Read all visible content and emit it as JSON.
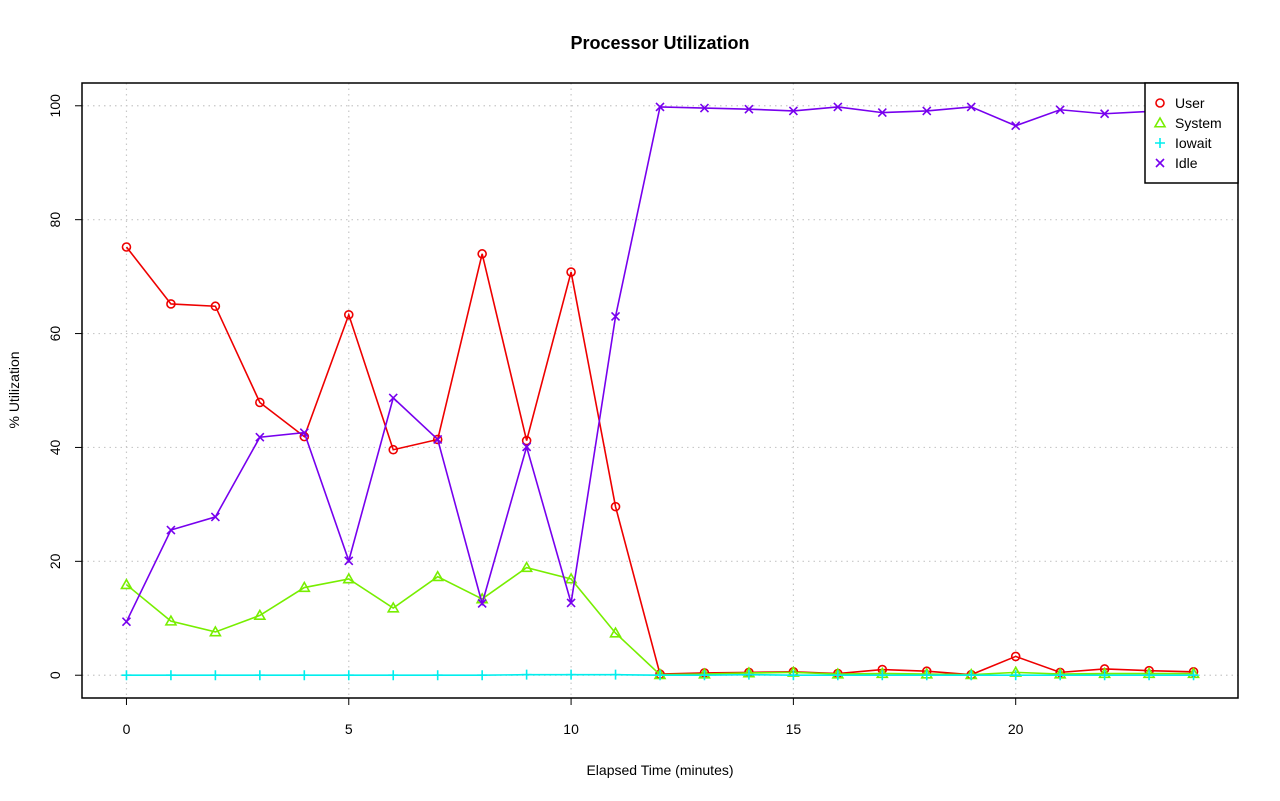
{
  "chart_data": {
    "type": "line",
    "title": "Processor Utilization",
    "xlabel": "Elapsed Time (minutes)",
    "ylabel": "% Utilization",
    "xlim": [
      -1,
      25
    ],
    "ylim": [
      -4,
      104
    ],
    "xticks": [
      "0",
      "5",
      "10",
      "15",
      "20"
    ],
    "xtick_values": [
      0,
      5,
      10,
      15,
      20
    ],
    "yticks": [
      "0",
      "20",
      "40",
      "60",
      "80",
      "100"
    ],
    "ytick_values": [
      0,
      20,
      40,
      60,
      80,
      100
    ],
    "grid": true,
    "legend_position": "top-right",
    "x": [
      0,
      1,
      2,
      3,
      4,
      5,
      6,
      7,
      8,
      9,
      10,
      11,
      12,
      13,
      14,
      15,
      16,
      17,
      18,
      19,
      20,
      21,
      22,
      23,
      24
    ],
    "series": [
      {
        "name": "User",
        "color": "#ee0000",
        "marker": "circle",
        "values": [
          75.2,
          65.2,
          64.8,
          47.9,
          41.9,
          63.3,
          39.6,
          41.4,
          74.0,
          41.2,
          70.8,
          29.6,
          0.2,
          0.4,
          0.5,
          0.6,
          0.3,
          1.0,
          0.7,
          0.1,
          3.3,
          0.5,
          1.1,
          0.8,
          0.6
        ]
      },
      {
        "name": "System",
        "color": "#77ee00",
        "marker": "triangle",
        "values": [
          15.9,
          9.5,
          7.6,
          10.5,
          15.4,
          16.9,
          11.8,
          17.3,
          13.4,
          18.9,
          16.9,
          7.4,
          0.1,
          0.2,
          0.4,
          0.5,
          0.2,
          0.3,
          0.2,
          0.1,
          0.5,
          0.2,
          0.3,
          0.3,
          0.3
        ]
      },
      {
        "name": "Iowait",
        "color": "#00eeee",
        "marker": "plus",
        "values": [
          0.0,
          0.0,
          0.0,
          0.0,
          0.0,
          0.0,
          0.0,
          0.0,
          0.0,
          0.1,
          0.1,
          0.1,
          0.0,
          0.0,
          0.1,
          0.0,
          0.0,
          0.0,
          0.0,
          0.0,
          0.0,
          0.0,
          0.0,
          0.0,
          0.0
        ]
      },
      {
        "name": "Idle",
        "color": "#7700ee",
        "marker": "cross",
        "values": [
          9.4,
          25.5,
          27.8,
          41.8,
          42.6,
          20.1,
          48.7,
          41.4,
          12.6,
          40.1,
          12.7,
          63.0,
          99.8,
          99.6,
          99.4,
          99.1,
          99.8,
          98.8,
          99.1,
          99.8,
          96.5,
          99.3,
          98.6,
          99.0,
          99.0
        ]
      }
    ]
  }
}
